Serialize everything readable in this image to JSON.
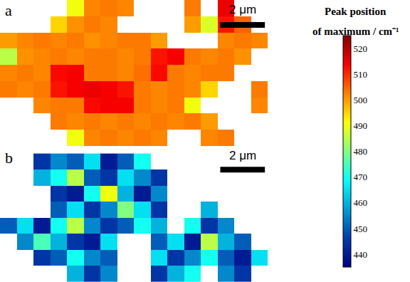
{
  "chart_data": [
    {
      "type": "heatmap",
      "label": "a",
      "x": [
        0,
        0.75,
        1.5,
        2.25,
        3,
        3.75,
        4.5,
        5.25,
        6,
        6.75,
        7.5,
        8.25,
        9,
        9.75,
        10.5,
        11.25
      ],
      "y": [
        0,
        0.75,
        1.5,
        2.25,
        3,
        3.75,
        4.5,
        5.25,
        6
      ],
      "z": [
        [
          null,
          null,
          null,
          null,
          490,
          502,
          503,
          502,
          null,
          null,
          null,
          503,
          null,
          515,
          null,
          null
        ],
        [
          null,
          null,
          null,
          495,
          501,
          503,
          502,
          null,
          null,
          null,
          null,
          500,
          488,
          512,
          505,
          null
        ],
        [
          500,
          502,
          503,
          502,
          503,
          501,
          502,
          503,
          503,
          500,
          null,
          null,
          null,
          502,
          503,
          502
        ],
        [
          485,
          501,
          502,
          503,
          502,
          503,
          503,
          502,
          503,
          512,
          514,
          503,
          502,
          503,
          501,
          null
        ],
        [
          502,
          503,
          502,
          513,
          514,
          503,
          503,
          502,
          504,
          513,
          503,
          502,
          503,
          503,
          null,
          null
        ],
        [
          503,
          502,
          503,
          512,
          514,
          515,
          514,
          512,
          503,
          502,
          503,
          502,
          495,
          null,
          null,
          503
        ],
        [
          null,
          null,
          502,
          503,
          503,
          513,
          514,
          514,
          503,
          502,
          503,
          490,
          null,
          null,
          null,
          502
        ],
        [
          null,
          null,
          null,
          503,
          502,
          503,
          502,
          503,
          502,
          503,
          502,
          503,
          500,
          null,
          null,
          null
        ],
        [
          null,
          null,
          null,
          null,
          490,
          502,
          503,
          502,
          503,
          502,
          null,
          null,
          502,
          503,
          null,
          null
        ]
      ],
      "tick_labels": false,
      "scale_bar": {
        "length": 2,
        "label": "2 μm"
      }
    },
    {
      "type": "heatmap",
      "label": "b",
      "x": [
        0,
        0.75,
        1.5,
        2.25,
        3,
        3.75,
        4.5,
        5.25,
        6,
        6.75,
        7.5,
        8.25,
        9,
        9.75,
        10.5,
        11.25
      ],
      "y": [
        0,
        0.75,
        1.5,
        2.25,
        3,
        3.75,
        4.5,
        5.25
      ],
      "z": [
        [
          null,
          null,
          445,
          455,
          450,
          465,
          440,
          450,
          470,
          null,
          null,
          null,
          null,
          null,
          null,
          null
        ],
        [
          null,
          null,
          460,
          470,
          485,
          450,
          445,
          465,
          455,
          445,
          null,
          null,
          null,
          null,
          null,
          null
        ],
        [
          null,
          null,
          null,
          445,
          440,
          470,
          490,
          460,
          440,
          455,
          null,
          null,
          null,
          null,
          null,
          null
        ],
        [
          null,
          null,
          null,
          450,
          465,
          445,
          455,
          480,
          465,
          445,
          null,
          null,
          460,
          null,
          null,
          null
        ],
        [
          450,
          465,
          440,
          470,
          485,
          455,
          445,
          450,
          470,
          460,
          null,
          470,
          445,
          455,
          null,
          null
        ],
        [
          null,
          455,
          475,
          460,
          445,
          440,
          465,
          null,
          null,
          450,
          465,
          440,
          485,
          460,
          450,
          null
        ],
        [
          null,
          null,
          445,
          450,
          470,
          455,
          450,
          null,
          null,
          465,
          445,
          455,
          470,
          450,
          440,
          465
        ],
        [
          null,
          null,
          null,
          null,
          460,
          445,
          455,
          null,
          null,
          445,
          460,
          470,
          null,
          455,
          445,
          null
        ]
      ],
      "tick_labels": false,
      "scale_bar": {
        "length": 2,
        "label": "2 μm"
      }
    }
  ],
  "colorbar": {
    "title": [
      "Peak position",
      "of maximum / cm⁻¹"
    ],
    "range": [
      435,
      525
    ],
    "ticks": [
      440,
      450,
      460,
      470,
      480,
      490,
      500,
      510,
      520
    ]
  }
}
